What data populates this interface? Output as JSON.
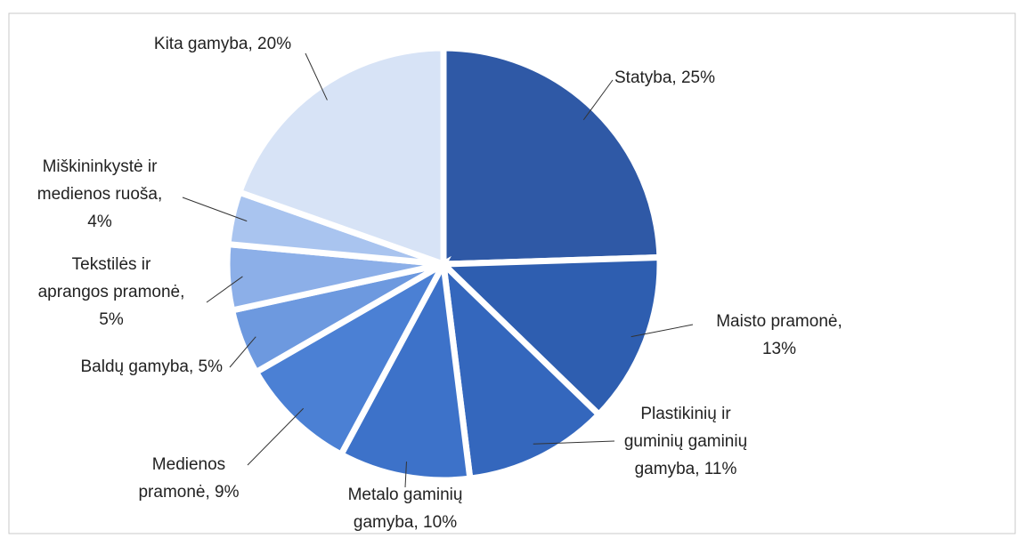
{
  "chart_data": {
    "type": "pie",
    "categories": [
      "Statyba",
      "Maisto pramonė",
      "Plastikinių ir guminių gaminių gamyba",
      "Metalo gaminių gamyba",
      "Medienos pramonė",
      "Baldų gamyba",
      "Tekstilės ir aprangos pramonė",
      "Miškininkystė ir medienos ruoša",
      "Kita gamyba"
    ],
    "values": [
      25,
      13,
      11,
      10,
      9,
      5,
      5,
      4,
      20
    ],
    "value_labels": [
      [
        "Statyba, 25%"
      ],
      [
        "Maisto pramonė,",
        "13%"
      ],
      [
        "Plastikinių ir",
        "guminių gaminių",
        "gamyba, 11%"
      ],
      [
        "Metalo gaminių",
        "gamyba, 10%"
      ],
      [
        "Medienos",
        "pramonė, 9%"
      ],
      [
        "Baldų gamyba, 5%"
      ],
      [
        "Tekstilės ir",
        "aprangos pramonė,",
        "5%"
      ],
      [
        "Miškininkystė ir",
        "medienos ruoša,",
        "4%"
      ],
      [
        "Kita gamyba, 20%"
      ]
    ],
    "colors": [
      "#2f59a6",
      "#2e5eb0",
      "#3467bd",
      "#3d72c9",
      "#4b80d4",
      "#6d99df",
      "#8cafe8",
      "#a9c4ef",
      "#d7e3f6"
    ]
  }
}
